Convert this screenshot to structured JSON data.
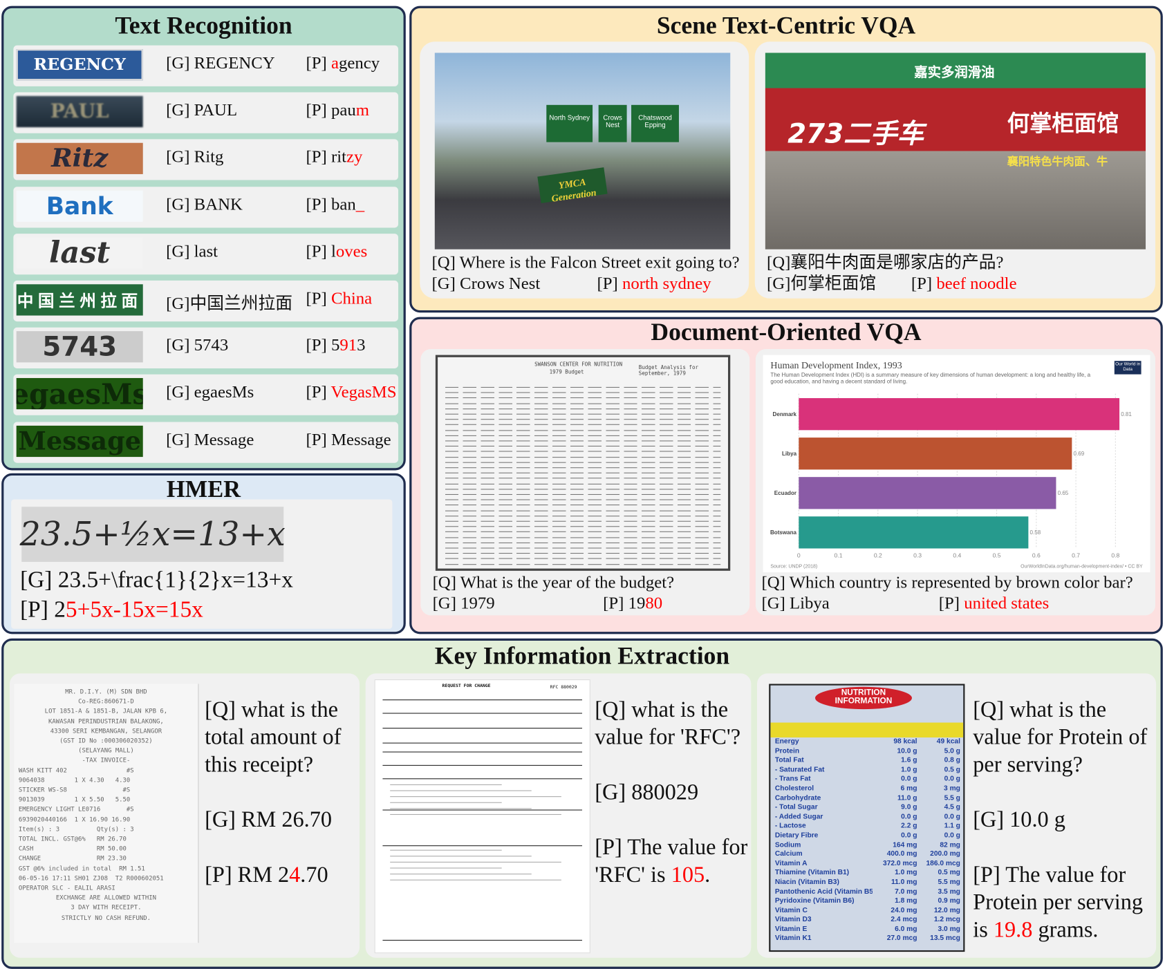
{
  "text_recognition": {
    "title": "Text Recognition",
    "rows": [
      {
        "image_text": "REGENCY",
        "g": "[G] REGENCY",
        "p_label": "[P] ",
        "p": [
          [
            "a",
            true
          ],
          [
            "gency",
            false
          ]
        ]
      },
      {
        "image_text": "PAUL",
        "g": "[G] PAUL",
        "p_label": "[P] ",
        "p": [
          [
            "pau",
            false
          ],
          [
            "m",
            true
          ]
        ]
      },
      {
        "image_text": "Ritz",
        "g": "[G] Ritg",
        "p_label": "[P] ",
        "p": [
          [
            "rit",
            false
          ],
          [
            "zy",
            true
          ]
        ]
      },
      {
        "image_text": "Bank",
        "g": "[G] BANK",
        "p_label": "[P] ",
        "p": [
          [
            "ban",
            false
          ],
          [
            "_",
            true
          ]
        ]
      },
      {
        "image_text": "last",
        "g": "[G] last",
        "p_label": "[P] ",
        "p": [
          [
            "l",
            false
          ],
          [
            "oves",
            true
          ]
        ]
      },
      {
        "image_text": "中国兰州拉面",
        "g": "[G]中国兰州拉面",
        "p_label": "[P] ",
        "p": [
          [
            "China",
            true
          ]
        ]
      },
      {
        "image_text": "5743",
        "g": "[G] 5743",
        "p_label": "[P] ",
        "p": [
          [
            "5",
            false
          ],
          [
            "91",
            true
          ],
          [
            "3",
            false
          ]
        ]
      },
      {
        "image_text": "egaesMs",
        "g": "[G] egaesMs",
        "p_label": "[P] ",
        "p": [
          [
            "VegasMS",
            true
          ]
        ]
      },
      {
        "image_text": "Message",
        "g": "[G] Message",
        "p_label": "[P] ",
        "p": [
          [
            "Message",
            false
          ]
        ]
      }
    ]
  },
  "hmer": {
    "title": "HMER",
    "image_text": "23.5+½x=13+x",
    "g": "[G] 23.5+\\frac{1}{2}x=13+x",
    "p_label": "[P] ",
    "p": [
      [
        "2",
        false
      ],
      [
        "5+5x-15x=15x",
        true
      ]
    ]
  },
  "scene_vqa": {
    "title": "Scene Text-Centric VQA",
    "items": [
      {
        "sign_text": [
          "North Sydney",
          "Crows Nest",
          "Chatswood Epping"
        ],
        "banner": "YMCA Generation",
        "q": "[Q] Where is the Falcon Street exit going to?",
        "g": "[G] Crows Nest",
        "p_label": "[P] ",
        "p": "north sydney"
      },
      {
        "sign_text": [
          "嘉实多润滑油",
          "273二手车",
          "何掌柜面馆",
          "襄阳特色牛肉面、牛"
        ],
        "q": "[Q]襄阳牛肉面是哪家店的产品?",
        "g": "[G]何掌柜面馆",
        "p_label": "[P] ",
        "p": "beef noodle"
      }
    ]
  },
  "doc_vqa": {
    "title": "Document-Oriented VQA",
    "budget_doc": {
      "heading": "SWANSON CENTER FOR NUTRITION",
      "subheading": "1979 Budget",
      "right": "Budget Analysis for September, 1979"
    },
    "budget_q": "[Q] What is the year of the budget?",
    "budget_g": "[G] 1979",
    "budget_p_label": "[P] ",
    "budget_p": [
      [
        "19",
        false
      ],
      [
        "80",
        true
      ]
    ],
    "chart": {
      "type": "bar",
      "title": "Human Development Index, 1993",
      "subtitle": "The Human Development Index (HDI) is a summary measure of key dimensions of human development: a long and healthy life, a good education, and having a decent standard of living.",
      "logo": "Our World in Data",
      "categories": [
        "Denmark",
        "Libya",
        "Ecuador",
        "Botswana"
      ],
      "values": [
        0.81,
        0.69,
        0.65,
        0.58
      ],
      "colors": [
        "#d9327a",
        "#bc5330",
        "#8a5ba6",
        "#269a8d"
      ],
      "xticks": [
        "0",
        "0.1",
        "0.2",
        "0.3",
        "0.4",
        "0.5",
        "0.6",
        "0.7",
        "0.8"
      ],
      "xlim": [
        0,
        0.85
      ],
      "source": "Source: UNDP (2018)",
      "credit": "OurWorldInData.org/human-development-index/ • CC BY"
    },
    "chart_q": "[Q] Which country is represented by brown color bar?",
    "chart_g": "[G] Libya",
    "chart_p_label": "[P] ",
    "chart_p": "united states"
  },
  "kie": {
    "title": "Key Information Extraction",
    "receipt_lines": [
      "MR. D.I.Y. (M) SDN BHD",
      "Co-REG:860671-D",
      "LOT 1851-A & 1851-B, JALAN KPB 6,",
      "KAWASAN PERINDUSTRIAN BALAKONG,",
      "43300 SERI KEMBANGAN, SELANGOR",
      "(GST ID No :000306020352)",
      "(SELAYANG MALL)",
      "-TAX INVOICE-",
      "",
      "WASH KITT 402                #S",
      "9064038        1 X 4.30   4.30",
      "STICKER WS-S8               #S",
      "9013039        1 X 5.50   5.50",
      "EMERGENCY LIGHT LE0716       #S",
      "6939020440166  1 X 16.90 16.90",
      "Item(s) : 3          Qty(s) : 3",
      "TOTAL INCL. GST@6%   RM 26.70",
      "CASH                 RM 50.00",
      "CHANGE               RM 23.30",
      "GST @6% included in total  RM 1.51",
      "06-05-16 17:11 SH01 ZJ08  T2 R000602051",
      "OPERATOR SLC - EALIL ARASI",
      "EXCHANGE ARE ALLOWED WITHIN",
      "3 DAY WITH RECEIPT.",
      "STRICTLY NO CASH REFUND."
    ],
    "items": [
      {
        "q": "[Q] what is the total amount of this receipt?",
        "g": "[G] RM 26.70",
        "p": [
          [
            "[P] RM 2",
            false
          ],
          [
            "4",
            true
          ],
          [
            ".70",
            false
          ]
        ]
      },
      {
        "form_title": "REQUEST FOR CHANGE",
        "form_rfc": "RFC 880029",
        "q": "[Q] what is the value for 'RFC'?",
        "g": "[G] 880029",
        "p": [
          [
            "[P] The value for 'RFC' is ",
            false
          ],
          [
            "105",
            true
          ],
          [
            ".",
            false
          ]
        ]
      },
      {
        "label_title": "NUTRITION INFORMATION",
        "label_rows": [
          [
            "Energy",
            "98 kcal",
            "49 kcal"
          ],
          [
            "Protein",
            "10.0 g",
            "5.0 g"
          ],
          [
            "Total Fat",
            "1.6 g",
            "0.8 g"
          ],
          [
            "- Saturated Fat",
            "1.0 g",
            "0.5 g"
          ],
          [
            "- Trans Fat",
            "0.0 g",
            "0.0 g"
          ],
          [
            "Cholesterol",
            "6 mg",
            "3 mg"
          ],
          [
            "Carbohydrate",
            "11.0 g",
            "5.5 g"
          ],
          [
            "- Total Sugar",
            "9.0 g",
            "4.5 g"
          ],
          [
            "- Added Sugar",
            "0.0 g",
            "0.0 g"
          ],
          [
            "- Lactose",
            "2.2 g",
            "1.1 g"
          ],
          [
            "Dietary Fibre",
            "0.0 g",
            "0.0 g"
          ],
          [
            "Sodium",
            "164 mg",
            "82 mg"
          ],
          [
            "Calcium",
            "400.0 mg",
            "200.0 mg"
          ],
          [
            "Vitamin A",
            "372.0 mcg",
            "186.0 mcg"
          ],
          [
            "Thiamine (Vitamin B1)",
            "1.0 mg",
            "0.5 mg"
          ],
          [
            "Niacin (Vitamin B3)",
            "11.0 mg",
            "5.5 mg"
          ],
          [
            "Pantothenic Acid (Vitamin B5)",
            "7.0 mg",
            "3.5 mg"
          ],
          [
            "Pyridoxine (Vitamin B6)",
            "1.8 mg",
            "0.9 mg"
          ],
          [
            "Vitamin C",
            "24.0 mg",
            "12.0 mg"
          ],
          [
            "Vitamin D3",
            "2.4 mcg",
            "1.2 mcg"
          ],
          [
            "Vitamin E",
            "6.0 mg",
            "3.0 mg"
          ],
          [
            "Vitamin K1",
            "27.0 mcg",
            "13.5 mcg"
          ]
        ],
        "q": "[Q] what is the value for Protein of per serving?",
        "g": "[G] 10.0 g",
        "p": [
          [
            "[P] The value for Protein per serving is ",
            false
          ],
          [
            "19.8",
            true
          ],
          [
            " grams.",
            false
          ]
        ]
      }
    ]
  },
  "colors": {
    "border": "#1f2d4f",
    "error": "#ff0000",
    "text_recognition_bg": "#b3dccb",
    "hmer_bg": "#dde9f5",
    "scene_bg": "#fde9bd",
    "doc_bg": "#fde0e0",
    "kie_bg": "#e2efd9"
  }
}
